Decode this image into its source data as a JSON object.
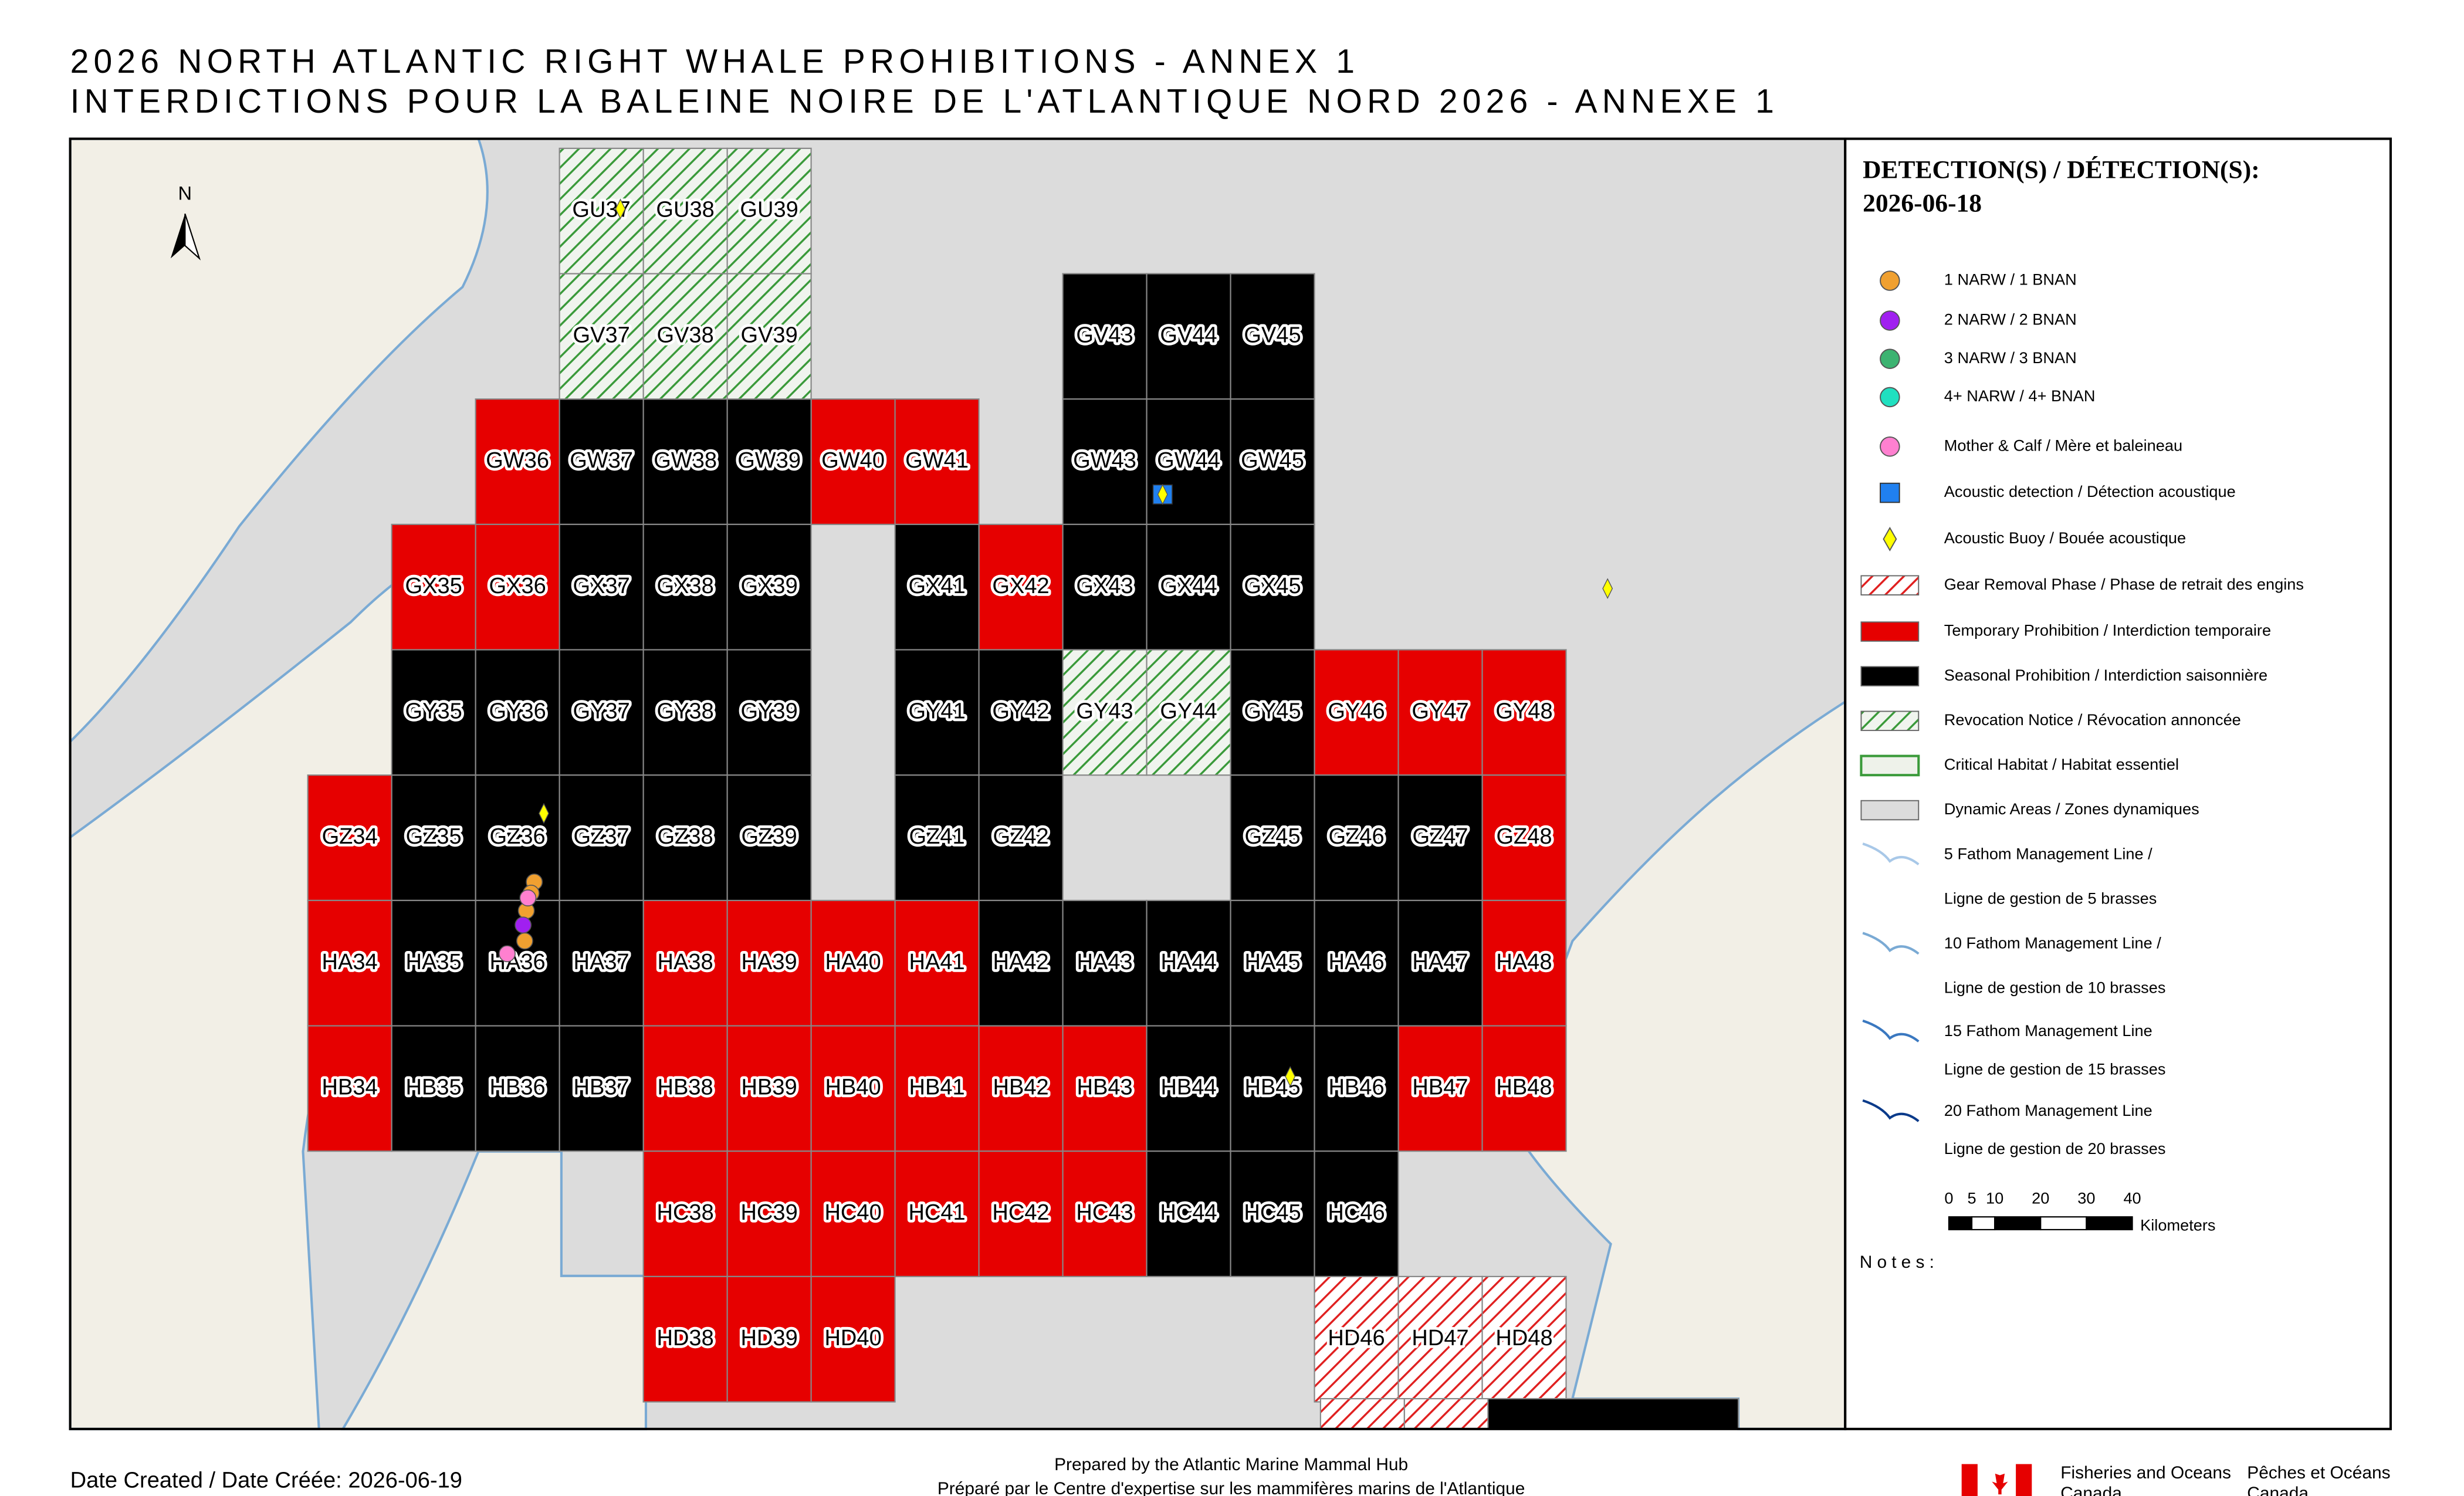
{
  "header": {
    "title_lines": [
      "2026 NORTH ATLANTIC RIGHT WHALE PROHIBITIONS - ANNEX 1",
      "INTERDICTIONS POUR LA BALEINE NOIRE DE L'ATLANTIQUE NORD 2026 - ANNEXE 1"
    ]
  },
  "map": {
    "north": "N"
  },
  "legend": {
    "title": "DETECTION(S) / DÉTECTION(S):",
    "date": "2026-06-18",
    "items": [
      {
        "label": [
          "1 NARW / 1 BNAN"
        ],
        "symbol": "circle",
        "color": "#f0a030"
      },
      {
        "label": [
          "2 NARW / 2 BNAN"
        ],
        "symbol": "circle",
        "color": "#a020f0"
      },
      {
        "label": [
          "3 NARW / 3 BNAN"
        ],
        "symbol": "circle",
        "color": "#3cb371"
      },
      {
        "label": [
          "4+ NARW / 4+ BNAN"
        ],
        "symbol": "circle",
        "color": "#20e0c0"
      },
      {
        "label": [
          "Mother & Calf / Mère et baleineau"
        ],
        "symbol": "circle",
        "color": "#ff80d0"
      },
      {
        "label": [
          "Acoustic detection / Détection acoustique"
        ],
        "symbol": "square",
        "color": "#2080f0"
      },
      {
        "label": [
          "Acoustic Buoy / Bouée acoustique"
        ],
        "symbol": "diamond",
        "color": "#ffff00"
      },
      {
        "label": [
          "Gear Removal Phase / Phase de retrait des engins"
        ],
        "symbol": "hatch",
        "color": "#e02020",
        "cells": [
          "HD46",
          "HD47",
          "HD48"
        ]
      },
      {
        "label": [
          "Temporary Prohibition / Interdiction temporaire"
        ],
        "symbol": "rect",
        "color": "#e60000",
        "cells": [
          "GX35",
          "GW36",
          "GX36",
          "GW40",
          "GW41",
          "GX42",
          "GY46",
          "GY47",
          "GY48",
          "GZ34",
          "GZ48",
          "HA34",
          "HA38",
          "HA39",
          "HA40",
          "HA41",
          "HA48",
          "HB34",
          "HB38",
          "HB39",
          "HB40",
          "HB41",
          "HB42",
          "HB43",
          "HB47",
          "HB48",
          "HC38",
          "HC39",
          "HC40",
          "HC41",
          "HC42",
          "HC43",
          "HD38",
          "HD39",
          "HD40"
        ]
      },
      {
        "label": [
          "Seasonal Prohibition / Interdiction saisonnière"
        ],
        "symbol": "rect",
        "color": "#000000",
        "cells": [
          "GV43",
          "GV44",
          "GV45",
          "GW37",
          "GW38",
          "GW39",
          "GW43",
          "GW44",
          "GW45",
          "GX37",
          "GX38",
          "GX39",
          "GX41",
          "GX43",
          "GX44",
          "GX45",
          "GY35",
          "GY36",
          "GY37",
          "GY38",
          "GY39",
          "GY41",
          "GY42",
          "GY45",
          "GZ35",
          "GZ36",
          "GZ37",
          "GZ38",
          "GZ39",
          "GZ41",
          "GZ42",
          "GZ45",
          "GZ46",
          "GZ47",
          "HA35",
          "HA36",
          "HA37",
          "HA42",
          "HA43",
          "HA44",
          "HA45",
          "HA46",
          "HA47",
          "HB35",
          "HB36",
          "HB37",
          "HB44",
          "HB45",
          "HB46",
          "HC44",
          "HC45",
          "HC46"
        ]
      },
      {
        "label": [
          "Revocation Notice / Révocation annoncée"
        ],
        "symbol": "hatch",
        "color": "#3a9a3a",
        "cells": [
          "GU37",
          "GU38",
          "GU39",
          "GV37",
          "GV38",
          "GV39",
          "GY43",
          "GY44"
        ]
      },
      {
        "label": [
          "Critical Habitat / Habitat essentiel"
        ],
        "symbol": "outline",
        "color": "#3a9a3a"
      },
      {
        "label": [
          "Dynamic Areas / Zones dynamiques"
        ],
        "symbol": "rect",
        "color": "#dcdcdc"
      },
      {
        "label": [
          "5 Fathom Management Line /",
          "Ligne de gestion de 5 brasses"
        ],
        "symbol": "line",
        "color": "#a8c8e8"
      },
      {
        "label": [
          "10 Fathom Management Line /",
          "Ligne de gestion de 10 brasses"
        ],
        "symbol": "line",
        "color": "#7aaad4"
      },
      {
        "label": [
          "15 Fathom Management Line",
          "Ligne de gestion de 15 brasses"
        ],
        "symbol": "line",
        "color": "#3a78c0"
      },
      {
        "label": [
          "20 Fathom Management Line",
          "Ligne de gestion de 20 brasses"
        ],
        "symbol": "line",
        "color": "#0a3a8a"
      }
    ],
    "scale_bar": {
      "ticks": [
        0,
        5,
        10,
        20,
        30,
        40
      ],
      "unit": "Kilometers"
    },
    "notes": "Notes:"
  },
  "footer": {
    "date_created": "Date Created / Date Créée: 2026-06-19",
    "prepared": [
      "Prepared by the Atlantic Marine Mammal Hub",
      "Préparé par le Centre d'expertise sur les mammifères marins de l'Atlantique"
    ],
    "agency_en": [
      "Fisheries and Oceans",
      "Canada"
    ],
    "agency_fr": [
      "Pêches et Océans",
      "Canada"
    ]
  }
}
